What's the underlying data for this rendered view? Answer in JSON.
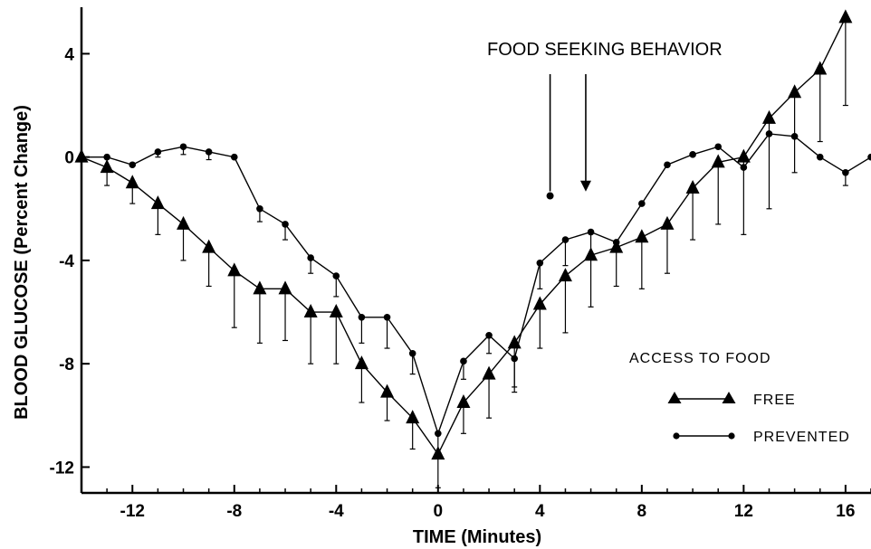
{
  "chart_data": {
    "type": "line",
    "title": "",
    "xlabel": "TIME (Minutes)",
    "ylabel": "BLOOD GLUCOSE (Percent Change)",
    "xlim": [
      -14,
      17
    ],
    "ylim": [
      -13,
      5.8
    ],
    "x_ticks": [
      -12,
      -8,
      -4,
      0,
      4,
      8,
      12,
      16
    ],
    "x_tick_labels": [
      "-12",
      "-8",
      "-4",
      "0",
      "4",
      "8",
      "12",
      "16"
    ],
    "y_ticks": [
      4,
      0,
      -4,
      -8,
      -12
    ],
    "y_tick_labels": [
      "4",
      "0",
      "-4",
      "-8",
      "-12"
    ],
    "grid": false,
    "legend": {
      "title": "ACCESS TO FOOD",
      "placement": "bottom-right",
      "entries": [
        {
          "label": "FREE",
          "marker": "triangle"
        },
        {
          "label": "PREVENTED",
          "marker": "circle"
        }
      ]
    },
    "annotation": {
      "text": "FOOD SEEKING BEHAVIOR",
      "arrows": [
        {
          "x": 4.4,
          "series": "PREVENTED",
          "marker": "circle"
        },
        {
          "x": 5.8,
          "series": "FREE",
          "marker": "triangle"
        }
      ]
    },
    "series": [
      {
        "name": "FREE",
        "marker": "triangle",
        "error_dir": "down",
        "points": [
          {
            "x": -14,
            "y": 0.0,
            "err": 0
          },
          {
            "x": -13,
            "y": -0.4,
            "err": 0.7
          },
          {
            "x": -12,
            "y": -1.0,
            "err": 0.8
          },
          {
            "x": -11,
            "y": -1.8,
            "err": 1.2
          },
          {
            "x": -10,
            "y": -2.6,
            "err": 1.4
          },
          {
            "x": -9,
            "y": -3.5,
            "err": 1.5
          },
          {
            "x": -8,
            "y": -4.4,
            "err": 2.2
          },
          {
            "x": -7,
            "y": -5.1,
            "err": 2.1
          },
          {
            "x": -6,
            "y": -5.1,
            "err": 2.0
          },
          {
            "x": -5,
            "y": -6.0,
            "err": 2.0
          },
          {
            "x": -4,
            "y": -6.0,
            "err": 2.0
          },
          {
            "x": -3,
            "y": -8.0,
            "err": 1.5
          },
          {
            "x": -2,
            "y": -9.1,
            "err": 1.1
          },
          {
            "x": -1,
            "y": -10.1,
            "err": 1.2
          },
          {
            "x": 0,
            "y": -11.5,
            "err": 1.3
          },
          {
            "x": 1,
            "y": -9.5,
            "err": 1.2
          },
          {
            "x": 2,
            "y": -8.4,
            "err": 1.7
          },
          {
            "x": 3,
            "y": -7.2,
            "err": 1.9
          },
          {
            "x": 4,
            "y": -5.7,
            "err": 1.7
          },
          {
            "x": 5,
            "y": -4.6,
            "err": 2.2
          },
          {
            "x": 6,
            "y": -3.8,
            "err": 2.0
          },
          {
            "x": 7,
            "y": -3.5,
            "err": 1.5
          },
          {
            "x": 8,
            "y": -3.1,
            "err": 2.0
          },
          {
            "x": 9,
            "y": -2.6,
            "err": 1.9
          },
          {
            "x": 10,
            "y": -1.2,
            "err": 2.0
          },
          {
            "x": 11,
            "y": -0.2,
            "err": 2.4
          },
          {
            "x": 12,
            "y": 0.0,
            "err": 3.0
          },
          {
            "x": 13,
            "y": 1.5,
            "err": 3.5
          },
          {
            "x": 14,
            "y": 2.5,
            "err": 3.1
          },
          {
            "x": 15,
            "y": 3.4,
            "err": 2.8
          },
          {
            "x": 16,
            "y": 5.4,
            "err": 3.4
          }
        ]
      },
      {
        "name": "PREVENTED",
        "marker": "circle",
        "error_dir": "down",
        "points": [
          {
            "x": -14,
            "y": 0.0,
            "err": 0
          },
          {
            "x": -13,
            "y": 0.0,
            "err": 0
          },
          {
            "x": -12,
            "y": -0.3,
            "err": 0
          },
          {
            "x": -11,
            "y": 0.2,
            "err": 0.2
          },
          {
            "x": -10,
            "y": 0.4,
            "err": 0.3
          },
          {
            "x": -9,
            "y": 0.2,
            "err": 0.3
          },
          {
            "x": -8,
            "y": 0.0,
            "err": 0
          },
          {
            "x": -7,
            "y": -2.0,
            "err": 0.5
          },
          {
            "x": -6,
            "y": -2.6,
            "err": 0.6
          },
          {
            "x": -5,
            "y": -3.9,
            "err": 0.6
          },
          {
            "x": -4,
            "y": -4.6,
            "err": 0.8
          },
          {
            "x": -3,
            "y": -6.2,
            "err": 1.0
          },
          {
            "x": -2,
            "y": -6.2,
            "err": 1.2
          },
          {
            "x": -1,
            "y": -7.6,
            "err": 0.8
          },
          {
            "x": 0,
            "y": -10.7,
            "err": 0.9
          },
          {
            "x": 1,
            "y": -7.9,
            "err": 0.7
          },
          {
            "x": 2,
            "y": -6.9,
            "err": 0.7
          },
          {
            "x": 3,
            "y": -7.8,
            "err": 1.1
          },
          {
            "x": 4,
            "y": -4.1,
            "err": 1.0
          },
          {
            "x": 5,
            "y": -3.2,
            "err": 1.0
          },
          {
            "x": 6,
            "y": -2.9,
            "err": 0.9
          },
          {
            "x": 7,
            "y": -3.3,
            "err": 0
          },
          {
            "x": 8,
            "y": -1.8,
            "err": 0
          },
          {
            "x": 9,
            "y": -0.3,
            "err": 0
          },
          {
            "x": 10,
            "y": 0.1,
            "err": 0
          },
          {
            "x": 11,
            "y": 0.4,
            "err": 0
          },
          {
            "x": 12,
            "y": -0.4,
            "err": 0
          },
          {
            "x": 13,
            "y": 0.9,
            "err": 0
          },
          {
            "x": 14,
            "y": 0.8,
            "err": 0
          },
          {
            "x": 15,
            "y": 0.0,
            "err": 0
          },
          {
            "x": 16,
            "y": -0.6,
            "err": 0.5
          },
          {
            "x": 17,
            "y": 0.0,
            "err": 0
          }
        ]
      }
    ]
  }
}
